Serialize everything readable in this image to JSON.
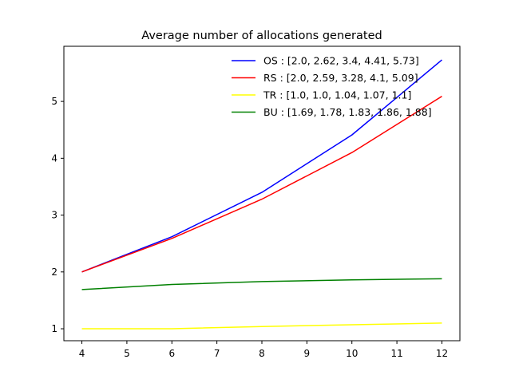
{
  "chart_data": {
    "type": "line",
    "title": "Average number of allocations generated",
    "xlabel": "",
    "ylabel": "",
    "x": [
      4,
      6,
      8,
      10,
      12
    ],
    "xlim": [
      3.6,
      12.4
    ],
    "ylim": [
      0.79,
      5.97
    ],
    "xticks": [
      4,
      5,
      6,
      7,
      8,
      9,
      10,
      11,
      12
    ],
    "yticks": [
      1,
      2,
      3,
      4,
      5
    ],
    "grid": false,
    "legend_position": "top-right",
    "series": [
      {
        "name": "OS : [2.0, 2.62, 3.4, 4.41, 5.73]",
        "color": "#0000ff",
        "values": [
          2.0,
          2.62,
          3.4,
          4.41,
          5.73
        ]
      },
      {
        "name": "RS : [2.0, 2.59, 3.28, 4.1, 5.09]",
        "color": "#ff0000",
        "values": [
          2.0,
          2.59,
          3.28,
          4.1,
          5.09
        ]
      },
      {
        "name": "TR : [1.0, 1.0, 1.04, 1.07, 1.1]",
        "color": "#ffff00",
        "values": [
          1.0,
          1.0,
          1.04,
          1.07,
          1.1
        ]
      },
      {
        "name": "BU : [1.69, 1.78, 1.83, 1.86, 1.88]",
        "color": "#008000",
        "values": [
          1.69,
          1.78,
          1.83,
          1.86,
          1.88
        ]
      }
    ]
  }
}
